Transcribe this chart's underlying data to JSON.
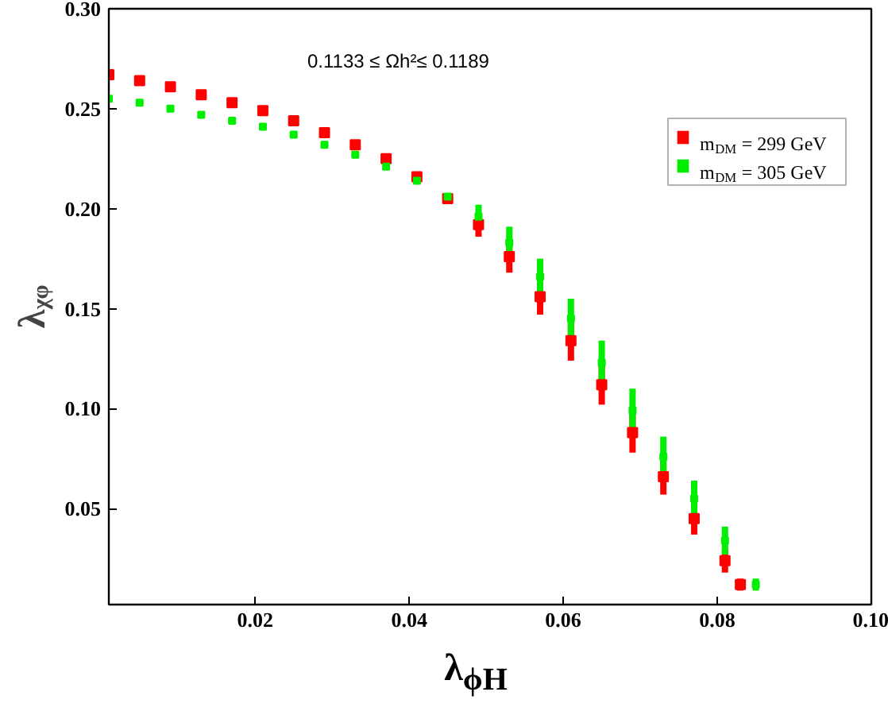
{
  "chart_data": {
    "type": "scatter",
    "xlabel": "λ$_{ϕH}$",
    "ylabel": "λᵪᵩ",
    "annotations": [
      "0.1133 ≤ Ωh²≤ 0.1189"
    ],
    "xlim": [
      0.001,
      0.1
    ],
    "ylim": [
      0.002,
      0.3
    ],
    "xticks": [
      0.02,
      0.04,
      0.06,
      0.08,
      {
        "value": 0.1,
        "label": "0.10"
      }
    ],
    "yticks": [
      0.05,
      {
        "value": 0.1,
        "label": "0.10"
      },
      0.15,
      {
        "value": 0.2,
        "label": "0.20"
      },
      0.25,
      {
        "value": 0.3,
        "label": "0.30"
      }
    ],
    "grid": false,
    "legend": "top right",
    "marker": "square",
    "series": [
      {
        "name": "m$_{DM}$ = 299 GeV",
        "color": "#ff0000",
        "x": [
          0.001,
          0.005,
          0.009,
          0.013,
          0.017,
          0.021,
          0.025,
          0.029,
          0.033,
          0.037,
          0.041,
          0.045,
          0.049,
          0.053,
          0.057,
          0.061,
          0.065,
          0.069,
          0.073,
          0.077,
          0.081,
          0.083
        ],
        "values": [
          0.267,
          0.264,
          0.261,
          0.257,
          0.253,
          0.249,
          0.244,
          0.238,
          0.232,
          0.225,
          0.216,
          0.205,
          0.192,
          0.176,
          0.156,
          0.134,
          0.112,
          0.088,
          0.066,
          0.045,
          0.024,
          0.012
        ],
        "errors": [
          null,
          null,
          null,
          null,
          null,
          null,
          null,
          null,
          null,
          null,
          null,
          null,
          0.006,
          0.008,
          0.009,
          0.01,
          0.01,
          0.01,
          0.009,
          0.008,
          0.006,
          0.003
        ]
      },
      {
        "name": "m$_{DM}$ = 305 GeV",
        "color": "#00ee00",
        "x": [
          0.001,
          0.005,
          0.009,
          0.013,
          0.017,
          0.021,
          0.025,
          0.029,
          0.033,
          0.037,
          0.041,
          0.045,
          0.049,
          0.053,
          0.057,
          0.061,
          0.065,
          0.069,
          0.073,
          0.077,
          0.081,
          0.085
        ],
        "values": [
          0.255,
          0.253,
          0.25,
          0.247,
          0.244,
          0.241,
          0.237,
          0.232,
          0.227,
          0.221,
          0.214,
          0.206,
          0.196,
          0.183,
          0.166,
          0.145,
          0.123,
          0.099,
          0.076,
          0.055,
          0.034,
          0.012
        ],
        "errors": [
          null,
          null,
          null,
          null,
          null,
          null,
          null,
          null,
          null,
          null,
          null,
          null,
          0.006,
          0.008,
          0.009,
          0.01,
          0.011,
          0.011,
          0.01,
          0.009,
          0.007,
          0.003
        ]
      }
    ]
  }
}
